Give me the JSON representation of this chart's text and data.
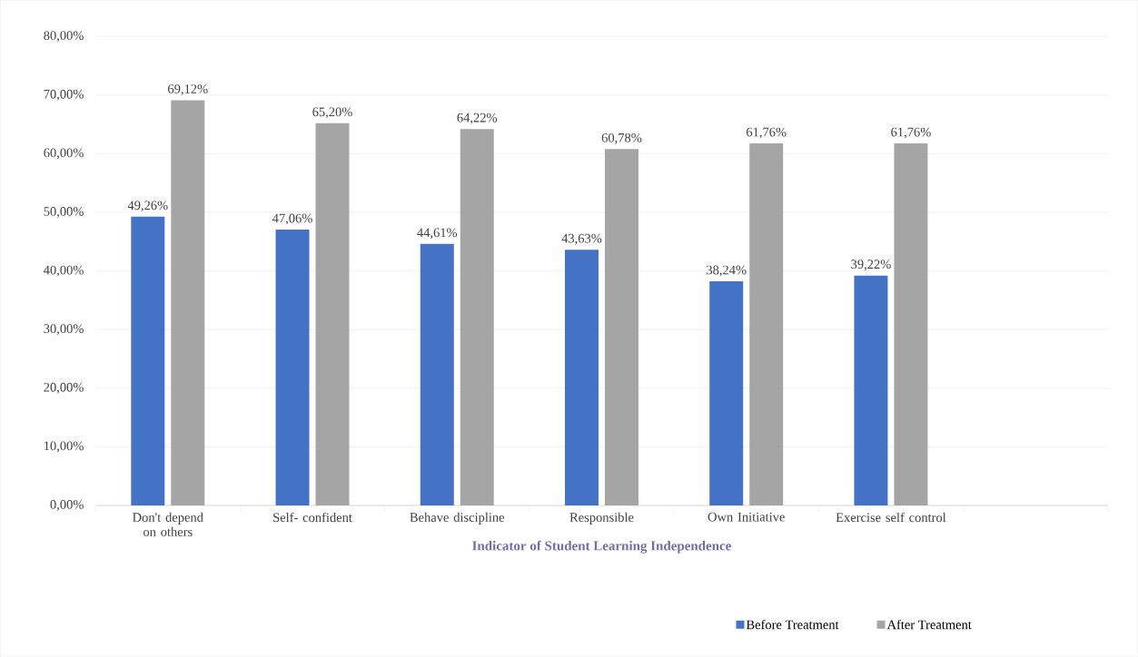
{
  "chart_data": {
    "type": "bar",
    "xlabel": "Indicator of Student Learning Independence",
    "categories": [
      "Don't depend on others",
      "Self- confident",
      "Behave discipline",
      "Responsible",
      "Own Initiative",
      "Exercise self control",
      null
    ],
    "series": [
      {
        "name": "Before Treatment",
        "color": "#4472c4",
        "values": [
          49.26,
          47.06,
          44.61,
          43.63,
          38.24,
          39.22,
          null
        ],
        "value_labels": [
          "49,26%",
          "47,06%",
          "44,61%",
          "43,63%",
          "38,24%",
          "39,22%",
          null
        ]
      },
      {
        "name": "After Treatment",
        "color": "#a5a5a5",
        "values": [
          69.12,
          65.2,
          64.22,
          60.78,
          61.76,
          61.76,
          null
        ],
        "value_labels": [
          "69,12%",
          "65,20%",
          "64,22%",
          "60,78%",
          "61,76%",
          "61,76%",
          null
        ]
      }
    ],
    "ylim": [
      0,
      80
    ],
    "yticks": [
      {
        "value": 0,
        "label": "0,00%"
      },
      {
        "value": 10,
        "label": "10,00%"
      },
      {
        "value": 20,
        "label": "20,00%"
      },
      {
        "value": 30,
        "label": "30,00%"
      },
      {
        "value": 40,
        "label": "40,00%"
      },
      {
        "value": 50,
        "label": "50,00%"
      },
      {
        "value": 60,
        "label": "60,00%"
      },
      {
        "value": 70,
        "label": "70,00%"
      },
      {
        "value": 80,
        "label": "80,00%"
      }
    ],
    "grid": "y",
    "legend": "bottom right"
  }
}
